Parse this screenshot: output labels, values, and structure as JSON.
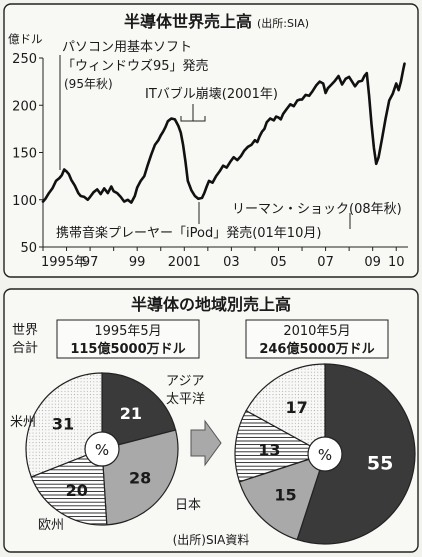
{
  "chart_data": [
    {
      "type": "line",
      "title": "半導体世界売上高",
      "source_note": "(出所:SIA)",
      "ylabel": "億ドル",
      "ylim": [
        50,
        250
      ],
      "yticks": [
        50,
        100,
        150,
        200,
        250
      ],
      "xlim": [
        1995.0,
        2010.5
      ],
      "x_tick_labels": [
        {
          "x": 1995.0,
          "label": "1995年"
        },
        {
          "x": 1997.0,
          "label": "97"
        },
        {
          "x": 1999.0,
          "label": "99"
        },
        {
          "x": 2001.0,
          "label": "2001"
        },
        {
          "x": 2003.0,
          "label": "03"
        },
        {
          "x": 2005.0,
          "label": "05"
        },
        {
          "x": 2007.0,
          "label": "07"
        },
        {
          "x": 2009.0,
          "label": "09"
        },
        {
          "x": 2010.0,
          "label": "10"
        }
      ],
      "series": [
        {
          "x": [
            1995.0,
            1995.1,
            1995.25,
            1995.4,
            1995.55,
            1995.7,
            1995.8,
            1995.9,
            1996.0,
            1996.1,
            1996.2,
            1996.35,
            1996.5,
            1996.6,
            1996.75,
            1996.9,
            1997.0,
            1997.15,
            1997.3,
            1997.45,
            1997.6,
            1997.75,
            1997.9,
            1998.0,
            1998.15,
            1998.3,
            1998.45,
            1998.6,
            1998.75,
            1998.9,
            1999.0,
            1999.15,
            1999.3,
            1999.45,
            1999.6,
            1999.75,
            1999.9,
            2000.0,
            2000.1,
            2000.2,
            2000.3,
            2000.45,
            2000.6,
            2000.75,
            2000.85,
            2000.95,
            2001.05,
            2001.15,
            2001.3,
            2001.45,
            2001.6,
            2001.75,
            2001.85,
            2001.95,
            2002.05,
            2002.2,
            2002.35,
            2002.5,
            2002.65,
            2002.8,
            2002.95,
            2003.1,
            2003.25,
            2003.4,
            2003.55,
            2003.7,
            2003.85,
            2004.0,
            2004.1,
            2004.2,
            2004.3,
            2004.4,
            2004.5,
            2004.65,
            2004.8,
            2004.9,
            2005.0,
            2005.1,
            2005.2,
            2005.35,
            2005.5,
            2005.65,
            2005.8,
            2005.9,
            2006.0,
            2006.15,
            2006.3,
            2006.45,
            2006.6,
            2006.75,
            2006.9,
            2007.0,
            2007.1,
            2007.25,
            2007.4,
            2007.55,
            2007.7,
            2007.85,
            2008.0,
            2008.1,
            2008.25,
            2008.4,
            2008.55,
            2008.65,
            2008.75,
            2008.85,
            2008.95,
            2009.05,
            2009.15,
            2009.25,
            2009.4,
            2009.55,
            2009.7,
            2009.85,
            2010.0,
            2010.1,
            2010.2,
            2010.3,
            2010.35
          ],
          "values": [
            98,
            101,
            107,
            112,
            120,
            123,
            126,
            132,
            130,
            127,
            121,
            115,
            107,
            104,
            103,
            100,
            103,
            108,
            111,
            106,
            112,
            107,
            114,
            109,
            107,
            103,
            98,
            100,
            97,
            104,
            113,
            120,
            125,
            137,
            148,
            158,
            163,
            168,
            172,
            177,
            183,
            186,
            185,
            178,
            171,
            158,
            140,
            120,
            110,
            104,
            101,
            102,
            107,
            114,
            120,
            118,
            125,
            130,
            136,
            134,
            140,
            145,
            142,
            146,
            152,
            156,
            158,
            163,
            161,
            167,
            172,
            175,
            182,
            186,
            184,
            188,
            187,
            185,
            191,
            196,
            201,
            199,
            205,
            206,
            206,
            211,
            210,
            215,
            221,
            225,
            223,
            213,
            218,
            222,
            226,
            231,
            222,
            228,
            230,
            226,
            220,
            225,
            226,
            231,
            234,
            210,
            180,
            155,
            138,
            145,
            165,
            186,
            205,
            212,
            223,
            216,
            225,
            238,
            244
          ]
        }
      ],
      "annotations": [
        {
          "lines": [
            "パソコン用基本ソフト",
            "「ウィンドウズ95」発売",
            "(95年秋)"
          ]
        },
        {
          "lines": [
            "ITバブル崩壊(2001年)"
          ]
        },
        {
          "lines": [
            "リーマン・ショック(08年秋)"
          ]
        },
        {
          "lines": [
            "携帯音楽プレーヤー「iPod」発売(01年10月)"
          ]
        }
      ]
    },
    {
      "type": "pie",
      "title": "半導体の地域別売上高",
      "note": "(出所)SIA資料",
      "region_labels": {
        "asia_line1": "アジア",
        "asia_line2": "太平洋",
        "us": "米州",
        "europe": "欧州",
        "japan": "日本"
      },
      "center_label": "%",
      "world_total_label_line1": "世界",
      "world_total_label_line2": "合計",
      "pies": [
        {
          "date": "1995年5月",
          "total": "115億5000万ドル",
          "slices": [
            {
              "name": "アジア太平洋",
              "value": 21
            },
            {
              "name": "日本",
              "value": 28
            },
            {
              "name": "欧州",
              "value": 20
            },
            {
              "name": "米州",
              "value": 31
            }
          ]
        },
        {
          "date": "2010年5月",
          "total": "246億5000万ドル",
          "slices": [
            {
              "name": "アジア太平洋",
              "value": 55
            },
            {
              "name": "日本",
              "value": 15
            },
            {
              "name": "欧州",
              "value": 13
            },
            {
              "name": "米州",
              "value": 17
            }
          ]
        }
      ]
    }
  ]
}
